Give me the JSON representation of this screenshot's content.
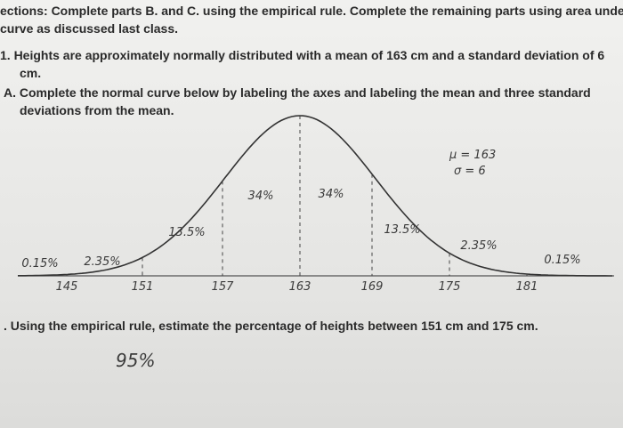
{
  "instructions": [
    "ections: Complete parts B. and C. using the empirical rule. Complete the remaining parts using area under",
    "curve as discussed last class."
  ],
  "question": [
    "1.  Heights are approximately normally distributed with a mean of 163 cm and a standard deviation of 6",
    "cm."
  ],
  "part_a": [
    "A. Complete the normal curve below by labeling the axes and labeling the mean and three standard",
    "deviations from the mean."
  ],
  "part_c": ". Using the empirical rule, estimate the percentage of heights between 151 cm and 175 cm.",
  "handwritten": {
    "mu": "μ = 163",
    "sigma": "σ = 6",
    "axis_labels": [
      "145",
      "151",
      "157",
      "163",
      "169",
      "175",
      "181"
    ],
    "percents": [
      "0.15%",
      "2.35%",
      "13.5%",
      "34%",
      "34%",
      "13.5%",
      "2.35%",
      "0.15%"
    ],
    "answer": "95%"
  }
}
